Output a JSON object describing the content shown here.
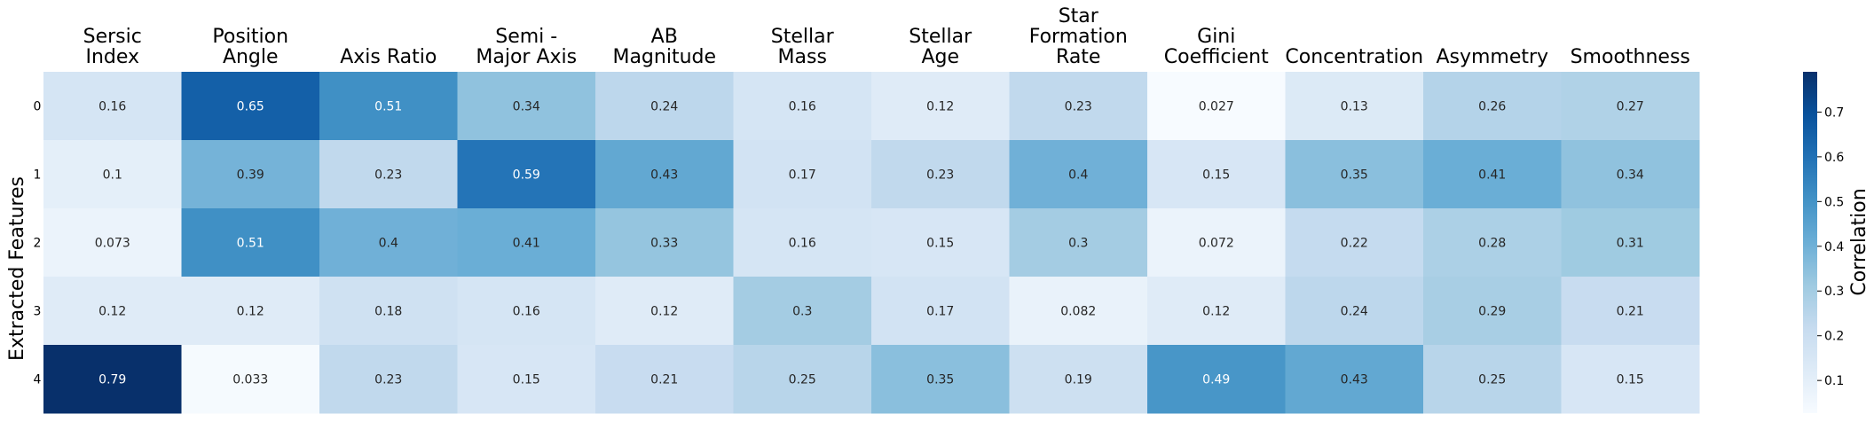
{
  "chart_data": {
    "type": "heatmap",
    "title": "",
    "xlabel": "",
    "ylabel": "Extracted Features",
    "columns": [
      [
        "Sersic",
        "Index"
      ],
      [
        "Position",
        "Angle"
      ],
      [
        "Axis Ratio"
      ],
      [
        "Semi -",
        "Major Axis"
      ],
      [
        "AB",
        "Magnitude"
      ],
      [
        "Stellar",
        "Mass"
      ],
      [
        "Stellar",
        "Age"
      ],
      [
        "Star",
        "Formation",
        "Rate"
      ],
      [
        "Gini",
        "Coefficient"
      ],
      [
        "Concentration"
      ],
      [
        "Asymmetry"
      ],
      [
        "Smoothness"
      ]
    ],
    "rows": [
      "0",
      "1",
      "2",
      "3",
      "4"
    ],
    "values": [
      [
        0.16,
        0.65,
        0.51,
        0.34,
        0.24,
        0.16,
        0.12,
        0.23,
        0.027,
        0.13,
        0.26,
        0.27
      ],
      [
        0.1,
        0.39,
        0.23,
        0.59,
        0.43,
        0.17,
        0.23,
        0.4,
        0.15,
        0.35,
        0.41,
        0.34
      ],
      [
        0.073,
        0.51,
        0.4,
        0.41,
        0.33,
        0.16,
        0.15,
        0.3,
        0.072,
        0.22,
        0.28,
        0.31
      ],
      [
        0.12,
        0.12,
        0.18,
        0.16,
        0.12,
        0.3,
        0.17,
        0.082,
        0.12,
        0.24,
        0.29,
        0.21
      ],
      [
        0.79,
        0.033,
        0.23,
        0.15,
        0.21,
        0.25,
        0.35,
        0.19,
        0.49,
        0.43,
        0.25,
        0.15
      ]
    ],
    "value_labels": [
      [
        "0.16",
        "0.65",
        "0.51",
        "0.34",
        "0.24",
        "0.16",
        "0.12",
        "0.23",
        "0.027",
        "0.13",
        "0.26",
        "0.27"
      ],
      [
        "0.1",
        "0.39",
        "0.23",
        "0.59",
        "0.43",
        "0.17",
        "0.23",
        "0.4",
        "0.15",
        "0.35",
        "0.41",
        "0.34"
      ],
      [
        "0.073",
        "0.51",
        "0.4",
        "0.41",
        "0.33",
        "0.16",
        "0.15",
        "0.3",
        "0.072",
        "0.22",
        "0.28",
        "0.31"
      ],
      [
        "0.12",
        "0.12",
        "0.18",
        "0.16",
        "0.12",
        "0.3",
        "0.17",
        "0.082",
        "0.12",
        "0.24",
        "0.29",
        "0.21"
      ],
      [
        "0.79",
        "0.033",
        "0.23",
        "0.15",
        "0.21",
        "0.25",
        "0.35",
        "0.19",
        "0.49",
        "0.43",
        "0.25",
        "0.15"
      ]
    ],
    "colorbar": {
      "label": "Correlation",
      "min": 0.027,
      "max": 0.79,
      "ticks": [
        0.1,
        0.2,
        0.3,
        0.4,
        0.5,
        0.6,
        0.7
      ],
      "tick_labels": [
        "0.1",
        "0.2",
        "0.3",
        "0.4",
        "0.5",
        "0.6",
        "0.7"
      ],
      "colormap": "Blues",
      "colors": [
        "#f7fbff",
        "#deebf7",
        "#c6dbef",
        "#9ecae1",
        "#6baed6",
        "#4292c6",
        "#2171b5",
        "#08519c",
        "#08306b"
      ]
    },
    "column_labels_position": "top",
    "grid": false,
    "legend": "colorbar-right"
  }
}
